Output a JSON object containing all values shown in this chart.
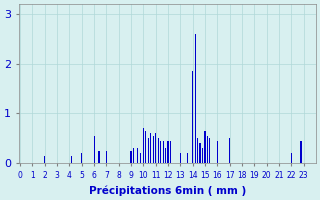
{
  "bar_color": "#0000cc",
  "bg_color": "#d8f0f0",
  "grid_color": "#b0d8d8",
  "xlabel": "Précipitations 6min ( mm )",
  "xlabel_color": "#0000cc",
  "ylim": [
    0,
    3.2
  ],
  "yticks": [
    0,
    1,
    2,
    3
  ],
  "hour_labels": [
    "0",
    "1",
    "2",
    "3",
    "4",
    "5",
    "6",
    "7",
    "8",
    "9",
    "10",
    "11",
    "12",
    "13",
    "14",
    "15",
    "16",
    "17",
    "18",
    "19",
    "20",
    "21",
    "22",
    "23"
  ],
  "fig_bg": "#d8f0f0",
  "n_intervals": 240,
  "values_6min": [
    0,
    0,
    0,
    0,
    0,
    0,
    0,
    0,
    0,
    0,
    0,
    0,
    0,
    0,
    0,
    0,
    0,
    0,
    0,
    0,
    0.15,
    0,
    0,
    0,
    0,
    0,
    0,
    0,
    0,
    0,
    0,
    0,
    0,
    0,
    0,
    0,
    0,
    0,
    0,
    0,
    0,
    0,
    0.15,
    0,
    0,
    0,
    0,
    0,
    0,
    0,
    0.2,
    0,
    0,
    0,
    0,
    0,
    0,
    0,
    0,
    0,
    0.55,
    0,
    0,
    0,
    0.25,
    0,
    0,
    0,
    0,
    0,
    0.25,
    0,
    0,
    0,
    0,
    0,
    0,
    0,
    0,
    0,
    0,
    0,
    0,
    0,
    0,
    0,
    0,
    0,
    0,
    0,
    0.25,
    0,
    0.3,
    0,
    0,
    0.3,
    0,
    0,
    0.2,
    0,
    0.7,
    0,
    0.65,
    0,
    0.5,
    0,
    0.6,
    0,
    0.55,
    0,
    0.6,
    0,
    0.5,
    0,
    0.45,
    0,
    0.45,
    0,
    0.3,
    0,
    0.45,
    0,
    0.45,
    0,
    0,
    0,
    0,
    0,
    0,
    0,
    0.2,
    0,
    0,
    0,
    0,
    0,
    0.2,
    0,
    0,
    0,
    1.85,
    0,
    2.6,
    0,
    0.5,
    0,
    0.4,
    0,
    0.3,
    0,
    0.65,
    0,
    0.55,
    0,
    0.5,
    0,
    0,
    0,
    0,
    0,
    0.45,
    0,
    0,
    0,
    0,
    0,
    0,
    0,
    0,
    0,
    0.5,
    0,
    0,
    0,
    0,
    0,
    0,
    0,
    0,
    0,
    0,
    0,
    0,
    0,
    0,
    0,
    0,
    0,
    0,
    0,
    0,
    0,
    0,
    0,
    0,
    0,
    0,
    0,
    0,
    0,
    0,
    0,
    0,
    0,
    0,
    0,
    0,
    0,
    0,
    0,
    0,
    0,
    0,
    0,
    0,
    0,
    0,
    0,
    0,
    0,
    0.2,
    0,
    0,
    0,
    0,
    0,
    0,
    0,
    0.45,
    0,
    0,
    0,
    0,
    0,
    0,
    0,
    0,
    0,
    0,
    0
  ]
}
